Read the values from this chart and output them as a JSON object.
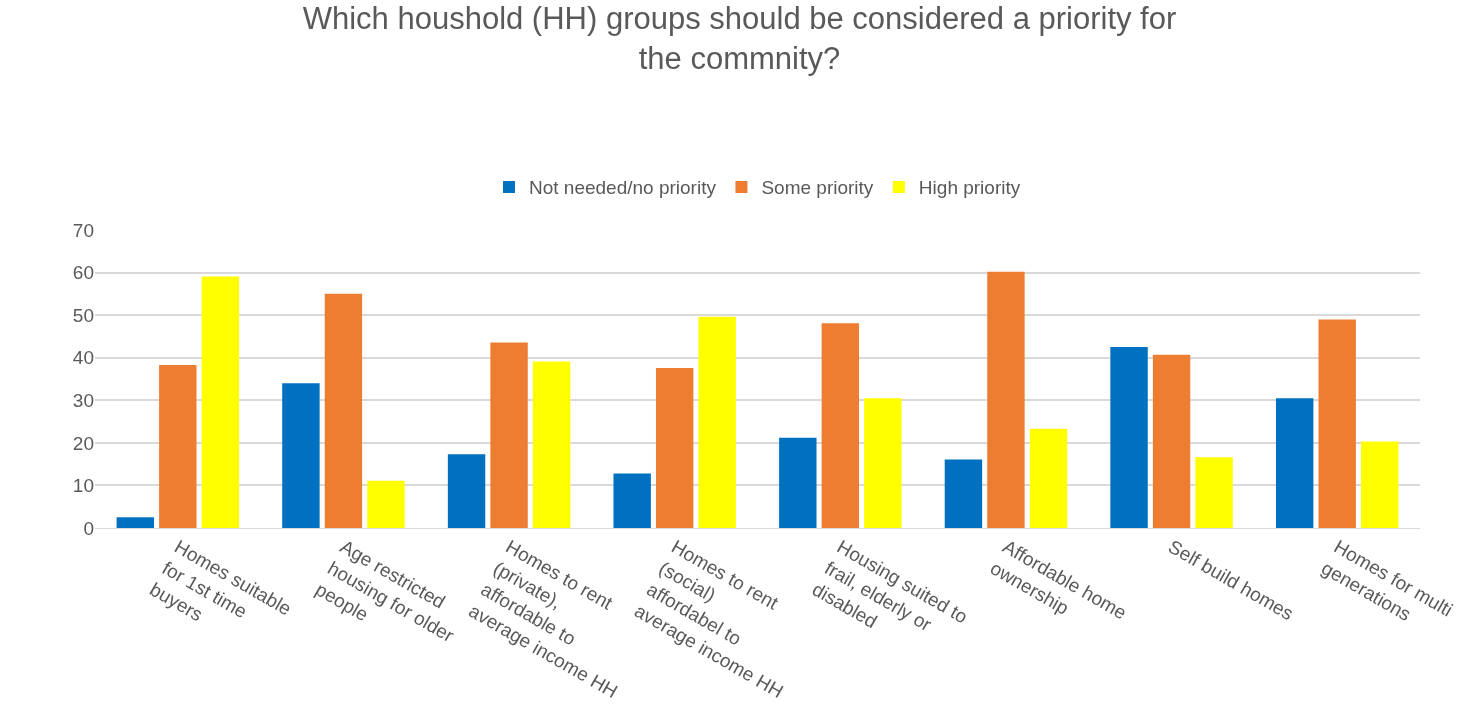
{
  "chart_data": {
    "type": "bar",
    "title": "Which houshold (HH) groups should be considered a priority for the commnity?",
    "categories": [
      "Homes suitable for 1st time buyers",
      "Age restricted housing for older people",
      "Homes to rent (private), affordable to average income HH",
      "Homes to rent (social) affordabel to average income HH",
      "Housing suited to frail, elderly or disabled",
      "Affordable home ownership",
      "Self build homes",
      "Homes for multi generations"
    ],
    "series": [
      {
        "name": "Not needed/no priority",
        "color": "#0070c0",
        "values": [
          2.5,
          34,
          17.3,
          12.8,
          21.2,
          16.1,
          42.5,
          30.5
        ]
      },
      {
        "name": "Some priority",
        "color": "#ed7d31",
        "values": [
          38.3,
          55,
          43.6,
          37.6,
          48.1,
          60.2,
          40.7,
          49
        ]
      },
      {
        "name": "High priority",
        "color": "#ffff00",
        "values": [
          59.1,
          11.1,
          39.1,
          49.6,
          30.5,
          23.3,
          16.6,
          20.3
        ]
      }
    ],
    "ylim": [
      0,
      70
    ],
    "yticks": [
      0,
      10,
      20,
      30,
      40,
      50,
      60,
      70
    ],
    "grid": "y",
    "legend": "top"
  }
}
